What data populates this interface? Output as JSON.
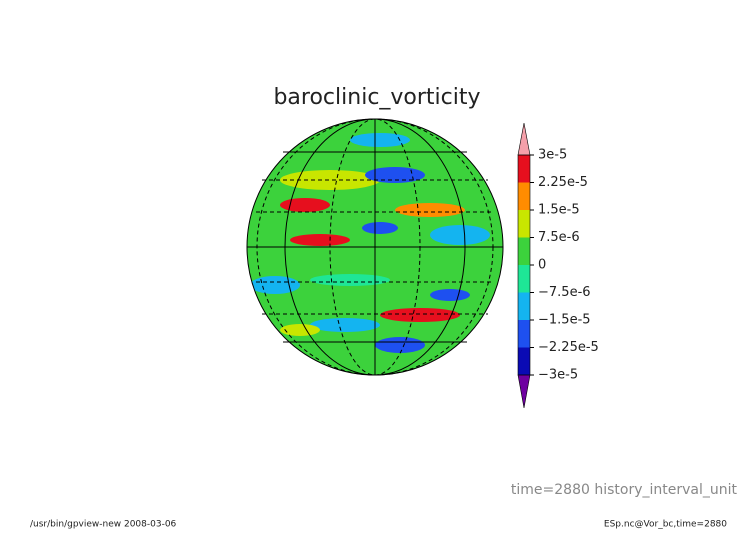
{
  "chart_data": {
    "type": "colormap",
    "title": "baroclinic_vorticity",
    "clim": [
      -3e-05,
      3e-05
    ],
    "colorbar_ticks": [
      {
        "value": 3e-05,
        "label": "3e-5"
      },
      {
        "value": 2.25e-05,
        "label": "2.25e-5"
      },
      {
        "value": 1.5e-05,
        "label": "1.5e-5"
      },
      {
        "value": 7.5e-06,
        "label": "7.5e-6"
      },
      0,
      {
        "value": -7.5e-06,
        "label": "−7.5e-6"
      },
      {
        "value": -1.5e-05,
        "label": "−1.5e-5"
      },
      {
        "value": -2.25e-05,
        "label": "−2.25e-5"
      },
      {
        "value": -3e-05,
        "label": "−3e-5"
      }
    ],
    "colors": [
      "#e60f1e",
      "#ff8c00",
      "#c8e600",
      "#3cd23c",
      "#1ee696",
      "#14b4f0",
      "#1e50f0",
      "#0a0ab4"
    ],
    "over_color": "#f5a0aa",
    "under_color": "#6e00a0",
    "annotation": "time=2880  history_interval_unit",
    "footer_left": "/usr/bin/gpview-new   2008-03-06",
    "footer_right": "ESp.nc@Vor_bc,time=2880"
  }
}
